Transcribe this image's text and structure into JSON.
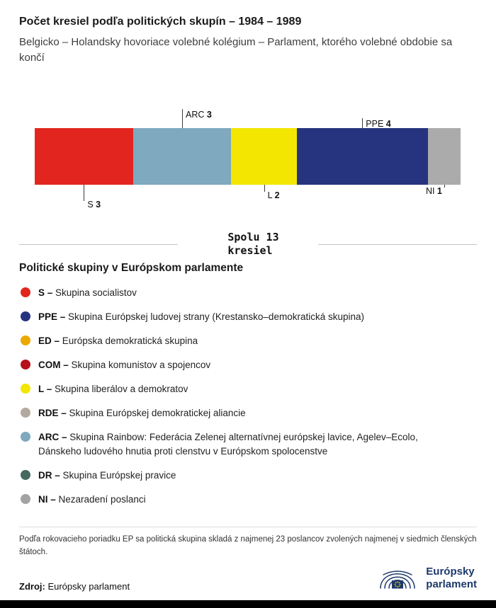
{
  "header": {
    "title": "Počet kresiel podľa politických skupín – 1984 – 1989",
    "subtitle": "Belgicko – Holandsky hovoriace volebné kolégium – Parlament, ktorého volebné obdobie sa končí"
  },
  "chart_data": {
    "type": "bar",
    "stacked": true,
    "orientation": "horizontal",
    "title": "Počet kresiel podľa politických skupín – 1984 – 1989",
    "total": 13,
    "total_label": "Spolu 13 kresiel",
    "categories": [
      "S",
      "ARC",
      "L",
      "PPE",
      "NI"
    ],
    "values": [
      3,
      3,
      2,
      4,
      1
    ],
    "segments": [
      {
        "group": "S",
        "seats": 3,
        "color": "#e2261f",
        "label_position": "below"
      },
      {
        "group": "ARC",
        "seats": 3,
        "color": "#7ea9be",
        "label_position": "above"
      },
      {
        "group": "L",
        "seats": 2,
        "color": "#f3e600",
        "label_position": "below"
      },
      {
        "group": "PPE",
        "seats": 4,
        "color": "#26337f",
        "label_position": "above"
      },
      {
        "group": "NI",
        "seats": 1,
        "color": "#ababab",
        "label_position": "below"
      }
    ]
  },
  "total": {
    "line1": "Spolu 13",
    "line2": "kresiel"
  },
  "legend": {
    "heading": "Politické skupiny v Európskom parlamente",
    "items": [
      {
        "abbr": "S",
        "name": "Skupina socialistov",
        "color": "#e2261f"
      },
      {
        "abbr": "PPE",
        "name": "Skupina Európskej ludovej strany (Krestansko–demokratická skupina)",
        "color": "#26337f"
      },
      {
        "abbr": "ED",
        "name": "Európska demokratická skupina",
        "color": "#eba800"
      },
      {
        "abbr": "COM",
        "name": "Skupina komunistov a spojencov",
        "color": "#b5121b"
      },
      {
        "abbr": "L",
        "name": "Skupina liberálov a demokratov",
        "color": "#f3e600"
      },
      {
        "abbr": "RDE",
        "name": "Skupina Európskej demokratickej aliancie",
        "color": "#b3a9a0"
      },
      {
        "abbr": "ARC",
        "name": "Skupina Rainbow: Federácia Zelenej alternatívnej európskej lavice, Agelev–Ecolo, Dánskeho ludového hnutia proti clenstvu v Európskom spolocenstve",
        "color": "#7ea9be"
      },
      {
        "abbr": "DR",
        "name": "Skupina Európskej pravice",
        "color": "#45695f"
      },
      {
        "abbr": "NI",
        "name": "Nezaradení poslanci",
        "color": "#a3a3a3"
      }
    ],
    "separator": "–"
  },
  "footer": {
    "note": "Podľa rokovacieho poriadku EP sa politická skupina skladá z najmenej 23 poslancov zvolených najmenej v siedmich členských štátoch.",
    "source_label": "Zdroj:",
    "source": "Európsky parlament",
    "logo_line1": "Európsky",
    "logo_line2": "parlament"
  }
}
